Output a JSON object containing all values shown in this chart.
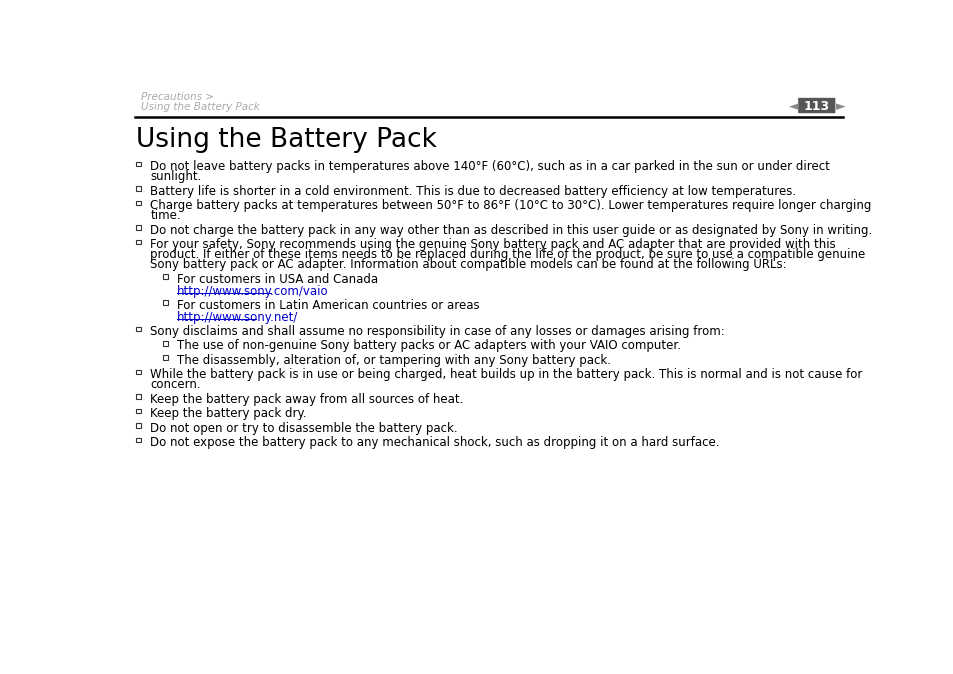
{
  "bg_color": "#ffffff",
  "header_breadcrumb_line1": "Precautions >",
  "header_breadcrumb_line2": "Using the Battery Pack",
  "header_breadcrumb_color": "#aaaaaa",
  "page_number": "113",
  "title": "Using the Battery Pack",
  "title_color": "#000000",
  "separator_color": "#000000",
  "text_color": "#000000",
  "link_color": "#0000cc",
  "items": [
    {
      "level": 0,
      "lines": [
        "Do not leave battery packs in temperatures above 140°F (60°C), such as in a car parked in the sun or under direct",
        "sunlight."
      ],
      "link": null
    },
    {
      "level": 0,
      "lines": [
        "Battery life is shorter in a cold environment. This is due to decreased battery efficiency at low temperatures."
      ],
      "link": null
    },
    {
      "level": 0,
      "lines": [
        "Charge battery packs at temperatures between 50°F to 86°F (10°C to 30°C). Lower temperatures require longer charging",
        "time."
      ],
      "link": null
    },
    {
      "level": 0,
      "lines": [
        "Do not charge the battery pack in any way other than as described in this user guide or as designated by Sony in writing."
      ],
      "link": null
    },
    {
      "level": 0,
      "lines": [
        "For your safety, Sony recommends using the genuine Sony battery pack and AC adapter that are provided with this",
        "product. If either of these items needs to be replaced during the life of the product, be sure to use a compatible genuine",
        "Sony battery pack or AC adapter. Information about compatible models can be found at the following URLs:"
      ],
      "link": null
    },
    {
      "level": 1,
      "lines": [
        "For customers in USA and Canada"
      ],
      "link": "http://www.sony.com/vaio"
    },
    {
      "level": 1,
      "lines": [
        "For customers in Latin American countries or areas"
      ],
      "link": "http://www.sony.net/"
    },
    {
      "level": 0,
      "lines": [
        "Sony disclaims and shall assume no responsibility in case of any losses or damages arising from:"
      ],
      "link": null
    },
    {
      "level": 1,
      "lines": [
        "The use of non-genuine Sony battery packs or AC adapters with your VAIO computer."
      ],
      "link": null
    },
    {
      "level": 1,
      "lines": [
        "The disassembly, alteration of, or tampering with any Sony battery pack."
      ],
      "link": null
    },
    {
      "level": 0,
      "lines": [
        "While the battery pack is in use or being charged, heat builds up in the battery pack. This is normal and is not cause for",
        "concern."
      ],
      "link": null
    },
    {
      "level": 0,
      "lines": [
        "Keep the battery pack away from all sources of heat."
      ],
      "link": null
    },
    {
      "level": 0,
      "lines": [
        "Keep the battery pack dry."
      ],
      "link": null
    },
    {
      "level": 0,
      "lines": [
        "Do not open or try to disassemble the battery pack."
      ],
      "link": null
    },
    {
      "level": 0,
      "lines": [
        "Do not expose the battery pack to any mechanical shock, such as dropping it on a hard surface."
      ],
      "link": null
    }
  ]
}
